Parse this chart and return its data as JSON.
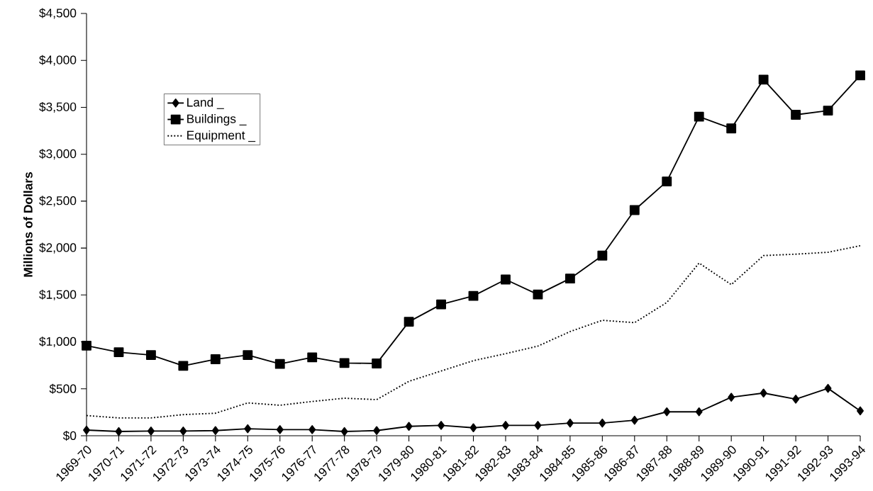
{
  "chart_data": {
    "type": "line",
    "ylabel": "Millions of Dollars",
    "categories": [
      "1969-70",
      "1970-71",
      "1971-72",
      "1972-73",
      "1973-74",
      "1974-75",
      "1975-76",
      "1976-77",
      "1977-78",
      "1978-79",
      "1979-80",
      "1980-81",
      "1981-82",
      "1982-83",
      "1983-84",
      "1984-85",
      "1985-86",
      "1986-87",
      "1987-88",
      "1988-89",
      "1989-90",
      "1990-91",
      "1991-92",
      "1992-93",
      "1993-94"
    ],
    "series": [
      {
        "name": "Land _",
        "color": "#000000",
        "marker": "diamond",
        "line_style": "solid",
        "values": [
          60,
          45,
          50,
          50,
          55,
          75,
          65,
          65,
          45,
          55,
          100,
          110,
          85,
          110,
          110,
          135,
          135,
          165,
          255,
          255,
          410,
          455,
          390,
          505,
          265
        ]
      },
      {
        "name": "Buildings _",
        "color": "#000000",
        "marker": "square",
        "line_style": "solid",
        "values": [
          960,
          890,
          860,
          745,
          815,
          860,
          765,
          835,
          775,
          770,
          1215,
          1400,
          1490,
          1665,
          1505,
          1675,
          1920,
          2405,
          2710,
          3400,
          3275,
          3795,
          3420,
          3465,
          3840
        ]
      },
      {
        "name": "Equipment _",
        "color": "#000000",
        "marker": "none",
        "line_style": "dotted",
        "values": [
          215,
          190,
          190,
          225,
          240,
          350,
          325,
          365,
          400,
          385,
          580,
          690,
          800,
          875,
          955,
          1110,
          1230,
          1205,
          1420,
          1840,
          1610,
          1920,
          1935,
          1955,
          2025
        ]
      }
    ],
    "ylim": [
      0,
      4500
    ],
    "yticks": [
      {
        "value": 0,
        "label": "$0"
      },
      {
        "value": 500,
        "label": "$500"
      },
      {
        "value": 1000,
        "label": "$1,000"
      },
      {
        "value": 1500,
        "label": "$1,500"
      },
      {
        "value": 2000,
        "label": "$2,000"
      },
      {
        "value": 2500,
        "label": "$2,500"
      },
      {
        "value": 3000,
        "label": "$3,000"
      },
      {
        "value": 3500,
        "label": "$3,500"
      },
      {
        "value": 4000,
        "label": "$4,000"
      },
      {
        "value": 4500,
        "label": "$4,500"
      }
    ],
    "grid": false,
    "legend": "top left"
  }
}
